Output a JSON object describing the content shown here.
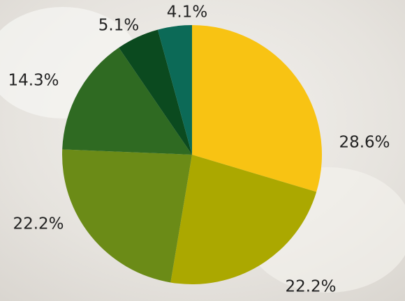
{
  "chart_data": {
    "type": "pie",
    "categories": [
      null,
      null,
      null,
      null,
      null,
      null
    ],
    "values": [
      28.6,
      22.2,
      22.2,
      14.3,
      5.1,
      4.1
    ],
    "value_labels": [
      "28.6%",
      "22.2%",
      "22.2%",
      "14.3%",
      "5.1%",
      "4.1%"
    ],
    "colors": [
      "#f8c313",
      "#aba800",
      "#6b8b17",
      "#2f6a22",
      "#0b4a1f",
      "#0c6a57"
    ]
  }
}
